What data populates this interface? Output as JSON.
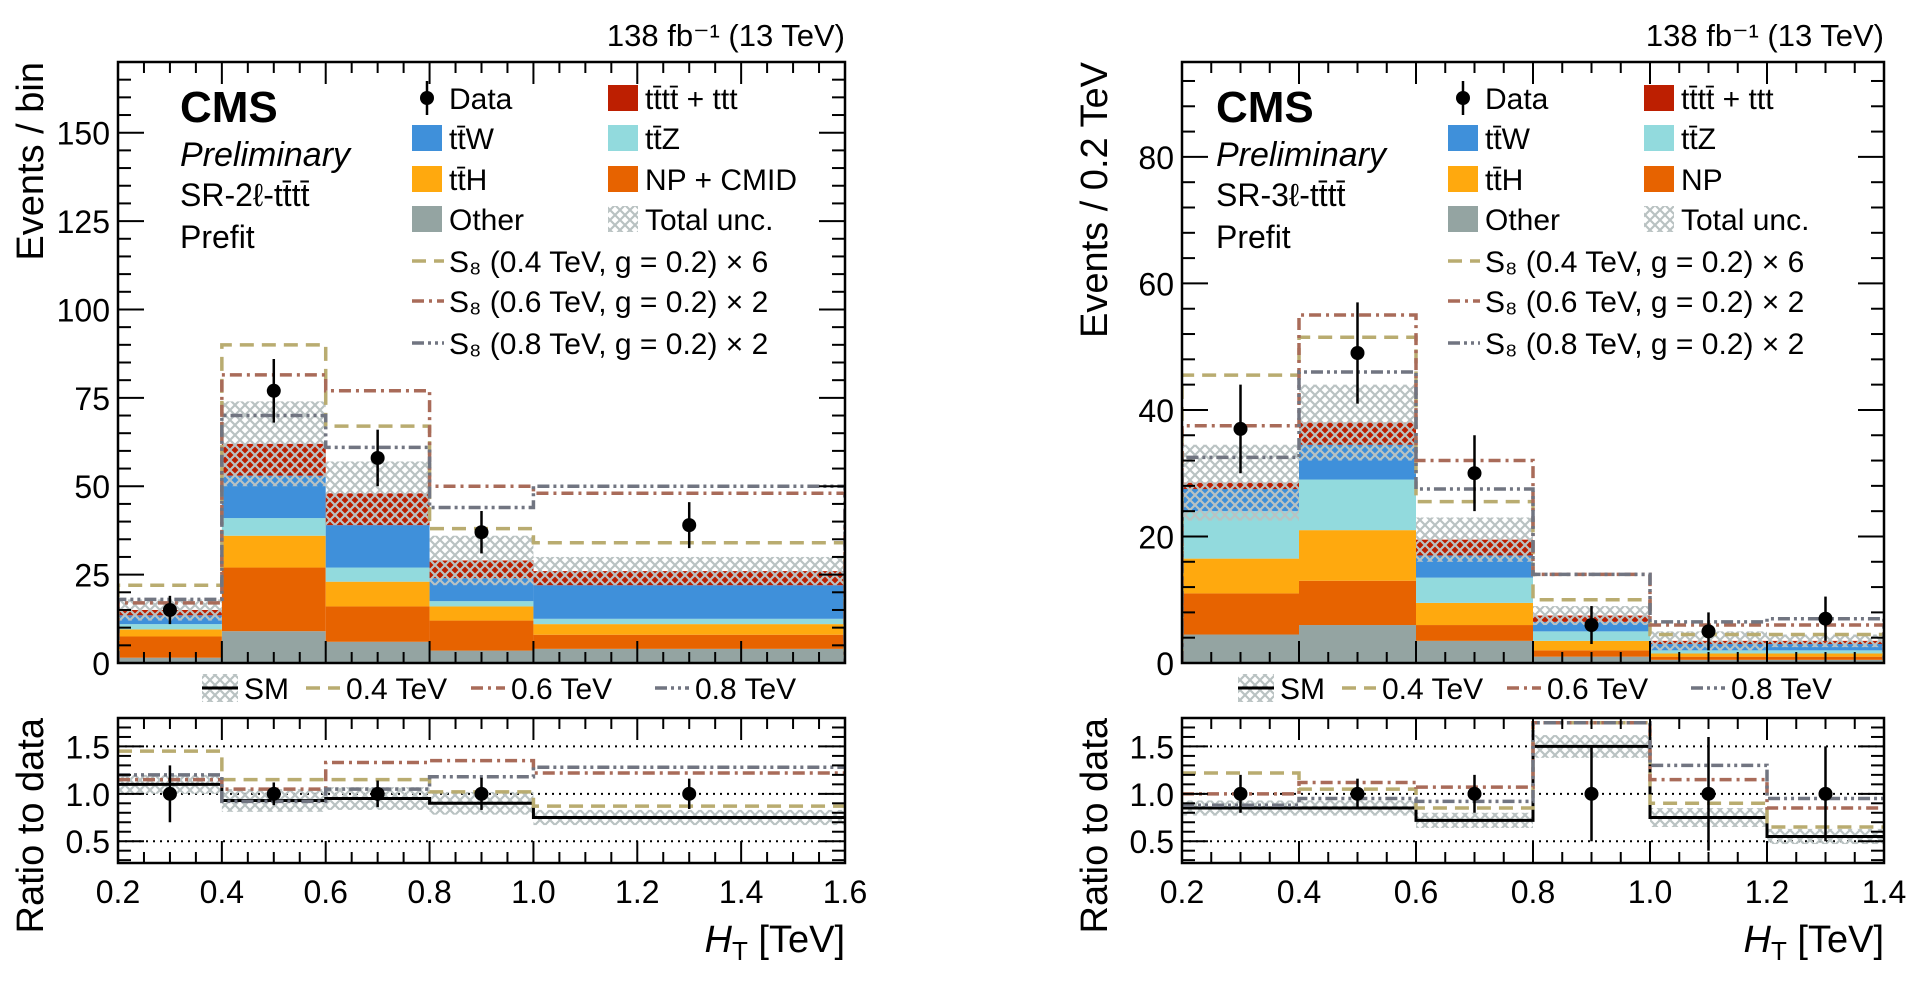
{
  "colors": {
    "Other": "#94a4a2",
    "NP": "#e76300",
    "ttH": "#ffa90e",
    "ttZ": "#92dadd",
    "ttW": "#3f90da",
    "tttt": "#bd1f01",
    "S8_04": "#b9ac70",
    "S8_06": "#a96b59",
    "S8_08": "#717581",
    "unc": "#b9c2c2"
  },
  "plots": [
    {
      "lumi": "138 fb⁻¹ (13 TeV)",
      "cms": "CMS",
      "preliminary": "Preliminary",
      "region": "SR-2ℓ-tt̄tt̄",
      "fit": "Prefit",
      "ylabel": "Events / bin",
      "ratio_ylabel": "Ratio to data",
      "xlabel": "H_T [TeV]",
      "xlabel_main": "H",
      "xlabel_sub": "T",
      "xlabel_unit": " [TeV]",
      "xlim": [
        0.2,
        1.6
      ],
      "ylim": [
        0,
        170
      ],
      "ratio_ylim": [
        0.27,
        1.8
      ],
      "xticks": [
        "0.2",
        "0.4",
        "0.6",
        "0.8",
        "1.0",
        "1.2",
        "1.4",
        "1.6"
      ],
      "yticks": [
        "0",
        "25",
        "50",
        "75",
        "100",
        "125",
        "150"
      ],
      "ratio_yticks": [
        "0.5",
        "1.0",
        "1.5"
      ],
      "bins": [
        0.2,
        0.4,
        0.6,
        0.8,
        1.0,
        1.6
      ],
      "stack": [
        {
          "key": "Other",
          "label": "Other",
          "values": [
            1.5,
            9,
            6,
            3.5,
            4
          ]
        },
        {
          "key": "NP",
          "label": "NP + CMID",
          "values": [
            6,
            18,
            10,
            8.5,
            4
          ]
        },
        {
          "key": "ttH",
          "label": "tt̄H",
          "values": [
            2,
            9,
            7,
            4,
            3
          ]
        },
        {
          "key": "ttZ",
          "label": "tt̄Z",
          "values": [
            1.5,
            5,
            4,
            1.5,
            1.5
          ]
        },
        {
          "key": "ttW",
          "label": "tt̄W",
          "values": [
            2.5,
            12,
            12,
            6.5,
            9.5
          ]
        },
        {
          "key": "tttt",
          "label": "tt̄tt̄ + ttt",
          "values": [
            1.5,
            9,
            9,
            5,
            4
          ]
        }
      ],
      "total_unc": [
        3,
        12,
        9,
        7,
        4
      ],
      "data": {
        "label": "Data",
        "values": [
          15,
          77,
          58,
          37,
          39
        ],
        "err": [
          4,
          9,
          8,
          6,
          6.5
        ]
      },
      "signals": [
        {
          "key": "S8_04",
          "label": "S₈ (0.4 TeV, g = 0.2) × 6",
          "short": "0.4 TeV",
          "dash": "14,8",
          "values": [
            22,
            90,
            67,
            38,
            34
          ],
          "ratio": [
            1.45,
            1.15,
            1.15,
            1.02,
            0.87
          ]
        },
        {
          "key": "S8_06",
          "label": "S₈ (0.6 TeV, g = 0.2) × 2",
          "short": "0.6 TeV",
          "dash": "12,5,3,5",
          "values": [
            17,
            81.5,
            77,
            50,
            48
          ],
          "ratio": [
            1.15,
            1.05,
            1.33,
            1.35,
            1.22
          ]
        },
        {
          "key": "S8_08",
          "label": "S₈ (0.8 TeV, g = 0.2) × 2",
          "short": "0.8 TeV",
          "dash": "12,4,3,4,3,4",
          "values": [
            18,
            70,
            61,
            44,
            50
          ],
          "ratio": [
            1.2,
            0.92,
            1.05,
            1.18,
            1.28
          ]
        }
      ],
      "unc_label": "Total unc.",
      "ratio": {
        "sm_label": "SM",
        "sm": [
          1.1,
          0.93,
          0.95,
          0.9,
          0.75
        ],
        "sm_unc": [
          0.1,
          0.12,
          0.12,
          0.12,
          0.08
        ],
        "data_err": [
          0.3,
          0.12,
          0.14,
          0.17,
          0.16
        ]
      }
    },
    {
      "lumi": "138 fb⁻¹ (13 TeV)",
      "cms": "CMS",
      "preliminary": "Preliminary",
      "region": "SR-3ℓ-tt̄tt̄",
      "fit": "Prefit",
      "ylabel": "Events / 0.2 TeV",
      "ratio_ylabel": "Ratio to data",
      "xlabel": "H_T [TeV]",
      "xlabel_main": "H",
      "xlabel_sub": "T",
      "xlabel_unit": " [TeV]",
      "xlim": [
        0.2,
        1.4
      ],
      "ylim": [
        0,
        95
      ],
      "ratio_ylim": [
        0.27,
        1.8
      ],
      "xticks": [
        "0.2",
        "0.4",
        "0.6",
        "0.8",
        "1.0",
        "1.2",
        "1.4"
      ],
      "yticks": [
        "0",
        "20",
        "40",
        "60",
        "80"
      ],
      "ratio_yticks": [
        "0.5",
        "1.0",
        "1.5"
      ],
      "bins": [
        0.2,
        0.4,
        0.6,
        0.8,
        1.0,
        1.2,
        1.4
      ],
      "stack": [
        {
          "key": "Other",
          "label": "Other",
          "values": [
            4.5,
            6,
            3.5,
            1,
            0.5,
            0.5
          ]
        },
        {
          "key": "NP",
          "label": "NP",
          "values": [
            6.5,
            7,
            2.5,
            1,
            0.5,
            0.5
          ]
        },
        {
          "key": "ttH",
          "label": "tt̄H",
          "values": [
            5.5,
            8,
            3.5,
            1.5,
            0.5,
            0.5
          ]
        },
        {
          "key": "ttZ",
          "label": "tt̄Z",
          "values": [
            7.5,
            8,
            4,
            1.5,
            0.5,
            0.5
          ]
        },
        {
          "key": "ttW",
          "label": "tt̄W",
          "values": [
            3.5,
            5.5,
            3.5,
            1.5,
            1,
            1
          ]
        },
        {
          "key": "tttt",
          "label": "tt̄tt̄ + ttt",
          "values": [
            1,
            3.5,
            2.5,
            1,
            0.5,
            0.5
          ]
        }
      ],
      "total_unc": [
        6,
        6,
        3.5,
        1.5,
        1.5,
        1
      ],
      "data": {
        "label": "Data",
        "values": [
          37,
          49,
          30,
          6,
          5,
          7
        ],
        "err": [
          7,
          8,
          6,
          3,
          3,
          3.5
        ]
      },
      "signals": [
        {
          "key": "S8_04",
          "label": "S₈ (0.4 TeV, g = 0.2) × 6",
          "short": "0.4 TeV",
          "dash": "14,8",
          "values": [
            45.5,
            51.5,
            25.5,
            10,
            4.5,
            4.5
          ],
          "ratio": [
            1.22,
            1.05,
            0.85,
            1.75,
            0.9,
            0.65
          ]
        },
        {
          "key": "S8_06",
          "label": "S₈ (0.6 TeV, g = 0.2) × 2",
          "short": "0.6 TeV",
          "dash": "12,5,3,5",
          "values": [
            37.5,
            55,
            32,
            14,
            6,
            6
          ],
          "ratio": [
            1.0,
            1.12,
            1.07,
            1.75,
            1.15,
            0.85
          ]
        },
        {
          "key": "S8_08",
          "label": "S₈ (0.8 TeV, g = 0.2) × 2",
          "short": "0.8 TeV",
          "dash": "12,4,3,4,3,4",
          "values": [
            32.5,
            46,
            27.5,
            14,
            6.5,
            7
          ],
          "ratio": [
            0.88,
            0.95,
            0.92,
            1.75,
            1.3,
            0.95
          ]
        }
      ],
      "unc_label": "Total unc.",
      "ratio": {
        "sm_label": "SM",
        "sm": [
          0.85,
          0.85,
          0.72,
          1.5,
          0.75,
          0.55
        ],
        "sm_unc": [
          0.08,
          0.08,
          0.08,
          0.12,
          0.1,
          0.08
        ],
        "data_err": [
          0.2,
          0.16,
          0.2,
          0.5,
          0.6,
          0.5
        ]
      }
    }
  ]
}
